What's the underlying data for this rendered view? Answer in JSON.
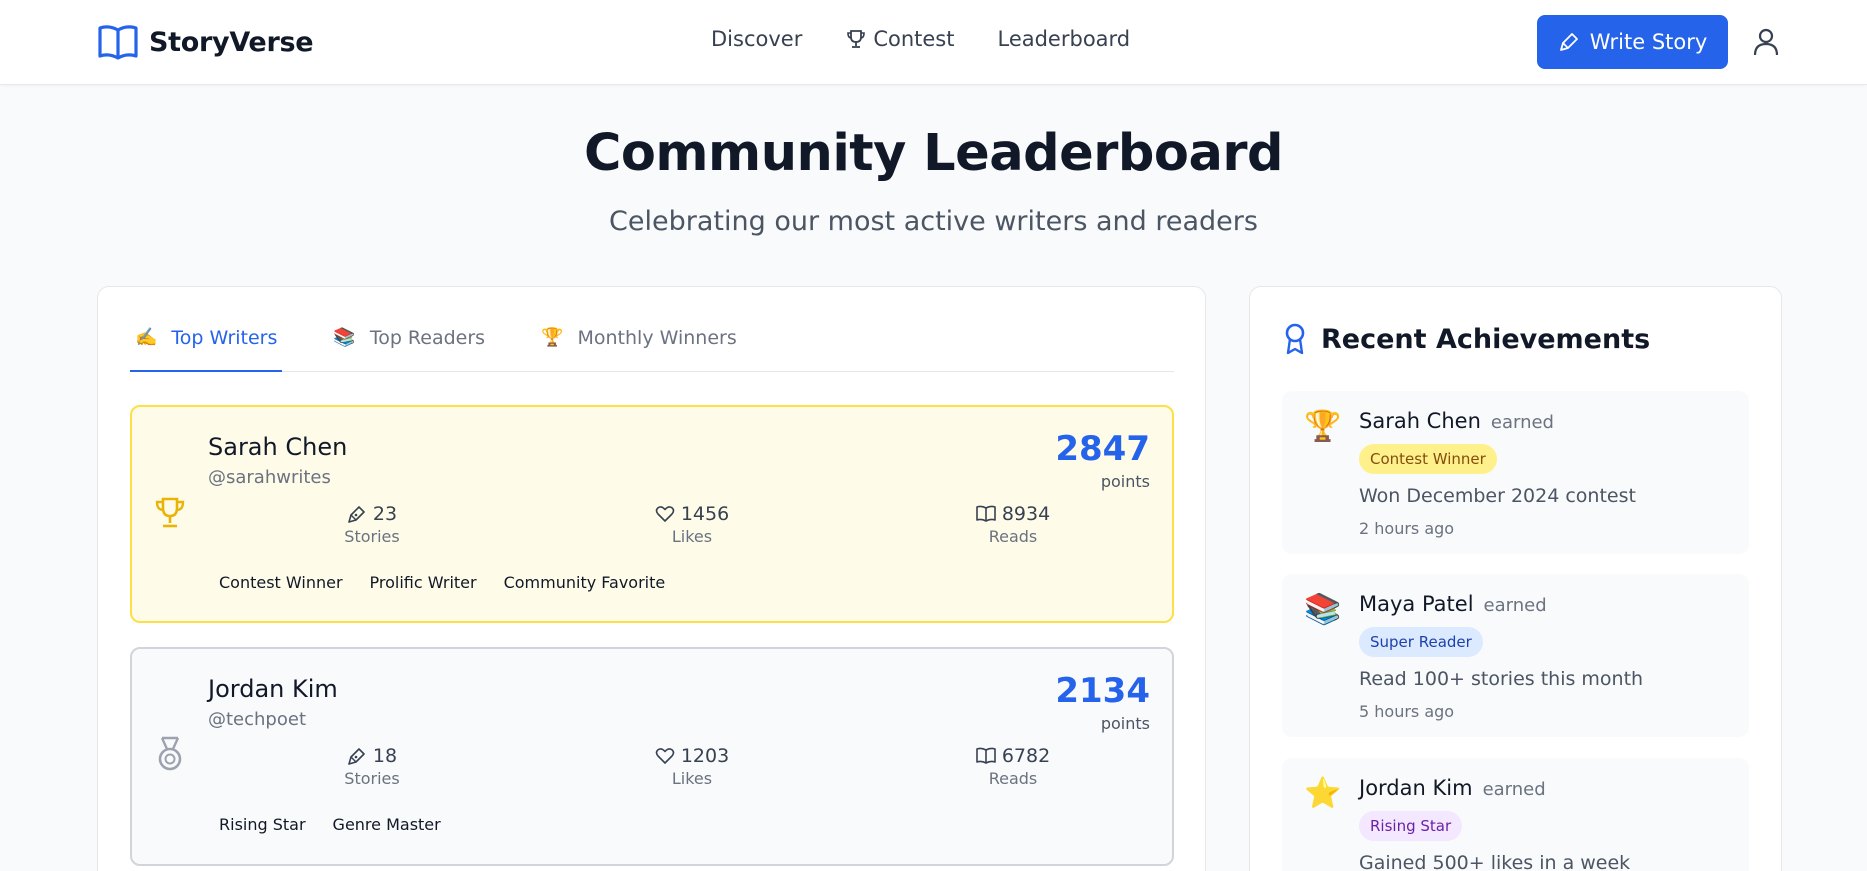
{
  "header": {
    "brand": "StoryVerse",
    "nav": [
      {
        "label": "Discover",
        "icon": ""
      },
      {
        "label": "Contest",
        "icon": "trophy-icon"
      },
      {
        "label": "Leaderboard",
        "icon": ""
      }
    ],
    "write_button": "Write Story",
    "user_icon": "user-icon"
  },
  "hero": {
    "title": "Community Leaderboard",
    "subtitle": "Celebrating our most active writers and readers"
  },
  "tabs": [
    {
      "emoji": "✍️",
      "label": "Top Writers",
      "active": true
    },
    {
      "emoji": "📚",
      "label": "Top Readers",
      "active": false
    },
    {
      "emoji": "🏆",
      "label": "Monthly Winners",
      "active": false
    }
  ],
  "leaders": [
    {
      "rank_icon": "trophy-icon",
      "name": "Sarah Chen",
      "handle": "@sarahwrites",
      "points": "2847",
      "points_label": "points",
      "stats": [
        {
          "icon": "pen-icon",
          "value": "23",
          "label": "Stories"
        },
        {
          "icon": "heart-icon",
          "value": "1456",
          "label": "Likes"
        },
        {
          "icon": "book-icon",
          "value": "8934",
          "label": "Reads"
        }
      ],
      "badges": [
        "Contest Winner",
        "Prolific Writer",
        "Community Favorite"
      ]
    },
    {
      "rank_icon": "medal-icon",
      "name": "Jordan Kim",
      "handle": "@techpoet",
      "points": "2134",
      "points_label": "points",
      "stats": [
        {
          "icon": "pen-icon",
          "value": "18",
          "label": "Stories"
        },
        {
          "icon": "heart-icon",
          "value": "1203",
          "label": "Likes"
        },
        {
          "icon": "book-icon",
          "value": "6782",
          "label": "Reads"
        }
      ],
      "badges": [
        "Rising Star",
        "Genre Master"
      ]
    }
  ],
  "achievements": {
    "title": "Recent Achievements",
    "title_icon": "award-icon",
    "items": [
      {
        "emoji": "🏆",
        "name": "Sarah Chen",
        "earned": "earned",
        "badge": "Contest Winner",
        "badge_bg": "#fef08a",
        "badge_color": "#854d0e",
        "description": "Won December 2024 contest",
        "time": "2 hours ago"
      },
      {
        "emoji": "📚",
        "name": "Maya Patel",
        "earned": "earned",
        "badge": "Super Reader",
        "badge_bg": "#dbeafe",
        "badge_color": "#1e40af",
        "description": "Read 100+ stories this month",
        "time": "5 hours ago"
      },
      {
        "emoji": "⭐",
        "name": "Jordan Kim",
        "earned": "earned",
        "badge": "Rising Star",
        "badge_bg": "#f3e8ff",
        "badge_color": "#6b21a8",
        "description": "Gained 500+ likes in a week",
        "time": ""
      }
    ]
  },
  "colors": {
    "accent": "#2563eb",
    "gold_card_bg": "#fefce8",
    "gold_card_border": "#fde047",
    "silver_card_border": "#d1d5db"
  }
}
